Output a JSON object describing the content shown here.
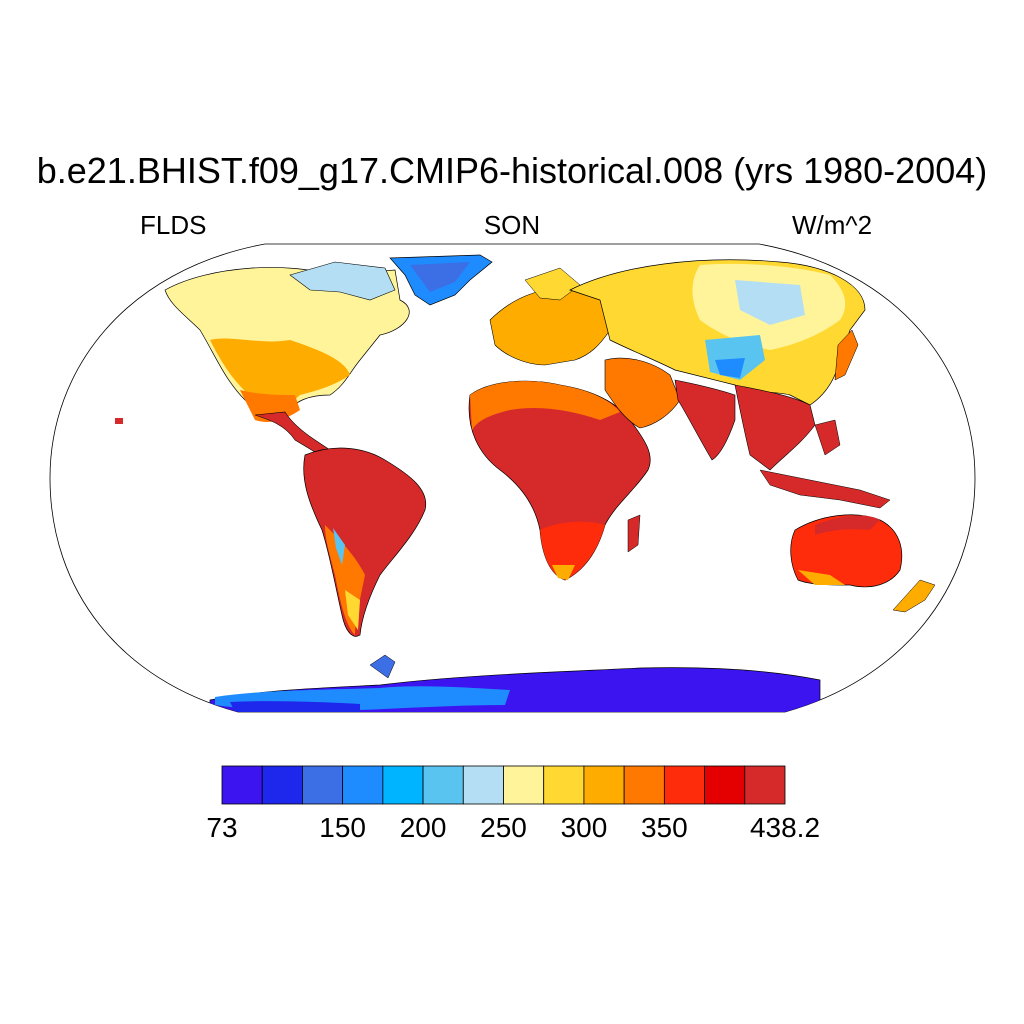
{
  "title": "b.e21.BHIST.f09_g17.CMIP6-historical.008 (yrs 1980-2004)",
  "subtitle_left": "FLDS",
  "subtitle_center": "SON",
  "subtitle_right": "W/m^2",
  "colorbar": {
    "colors": [
      "#3c14f0",
      "#1e28ec",
      "#3c6ee6",
      "#1e8cff",
      "#00b4ff",
      "#5ac4f0",
      "#b4def4",
      "#fff49a",
      "#ffd832",
      "#ffac00",
      "#ff7800",
      "#ff2c0c",
      "#e40000",
      "#d62a2a"
    ],
    "labels": [
      "73",
      "150",
      "200",
      "250",
      "300",
      "350",
      "438.2"
    ],
    "label_bin_edges": [
      0,
      3,
      5,
      7,
      9,
      11,
      14
    ]
  },
  "colors": {
    "coastline": "#000000",
    "ocean": "#ffffff"
  }
}
